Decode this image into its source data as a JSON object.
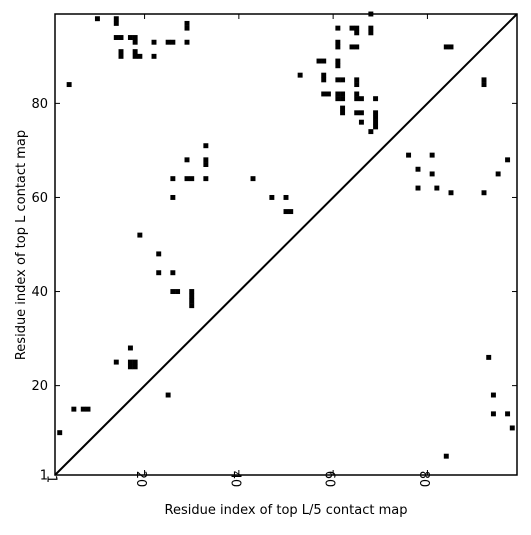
{
  "chart_data": {
    "type": "scatter",
    "title": "",
    "xlabel": "Residue index of top L/5 contact map",
    "ylabel": "Residue index of top L contact map",
    "xlim": [
      1,
      99
    ],
    "ylim": [
      1,
      99
    ],
    "x_ticks": [
      1,
      20,
      40,
      60,
      80
    ],
    "y_ticks": [
      1,
      20,
      40,
      60,
      80
    ],
    "grid": false,
    "diagonal": true,
    "marker": "square",
    "colors": {
      "marker": "#000000",
      "diagonal": "#000000",
      "axes": "#000000",
      "background": "#ffffff"
    },
    "upper_triangle_points": [
      [
        10,
        98
      ],
      [
        14,
        98
      ],
      [
        14,
        97
      ],
      [
        14,
        94
      ],
      [
        15,
        94
      ],
      [
        17,
        94
      ],
      [
        18,
        94
      ],
      [
        18,
        93
      ],
      [
        15,
        91
      ],
      [
        15,
        90
      ],
      [
        18,
        91
      ],
      [
        18,
        90
      ],
      [
        19,
        90
      ],
      [
        22,
        90
      ],
      [
        22,
        93
      ],
      [
        25,
        93
      ],
      [
        26,
        93
      ],
      [
        29,
        97
      ],
      [
        29,
        96
      ],
      [
        29,
        93
      ],
      [
        4,
        84
      ],
      [
        61,
        96
      ],
      [
        64,
        96
      ],
      [
        65,
        96
      ],
      [
        65,
        95
      ],
      [
        68,
        96
      ],
      [
        68,
        95
      ],
      [
        68,
        99
      ],
      [
        61,
        93
      ],
      [
        61,
        92
      ],
      [
        64,
        92
      ],
      [
        65,
        92
      ],
      [
        84,
        92
      ],
      [
        85,
        92
      ],
      [
        53,
        86
      ],
      [
        61,
        89
      ],
      [
        61,
        88
      ],
      [
        57,
        89
      ],
      [
        58,
        89
      ],
      [
        58,
        86
      ],
      [
        58,
        85
      ],
      [
        61,
        85
      ],
      [
        62,
        85
      ],
      [
        65,
        85
      ],
      [
        65,
        84
      ],
      [
        92,
        85
      ],
      [
        92,
        84
      ],
      [
        58,
        82
      ],
      [
        59,
        82
      ],
      [
        61,
        82
      ],
      [
        62,
        82
      ],
      [
        61,
        81
      ],
      [
        62,
        81
      ],
      [
        65,
        82
      ],
      [
        65,
        81
      ],
      [
        66,
        81
      ],
      [
        69,
        81
      ],
      [
        62,
        79
      ],
      [
        62,
        78
      ],
      [
        65,
        78
      ],
      [
        66,
        78
      ],
      [
        69,
        78
      ],
      [
        69,
        77
      ],
      [
        66,
        76
      ],
      [
        69,
        76
      ],
      [
        69,
        75
      ],
      [
        68,
        74
      ],
      [
        33,
        71
      ],
      [
        29,
        68
      ],
      [
        33,
        68
      ],
      [
        33,
        67
      ],
      [
        76,
        69
      ],
      [
        81,
        69
      ],
      [
        97,
        68
      ],
      [
        78,
        66
      ],
      [
        81,
        65
      ],
      [
        95,
        65
      ],
      [
        26,
        64
      ],
      [
        29,
        64
      ],
      [
        30,
        64
      ],
      [
        33,
        64
      ],
      [
        43,
        64
      ],
      [
        78,
        62
      ],
      [
        82,
        62
      ],
      [
        85,
        61
      ],
      [
        92,
        61
      ],
      [
        26,
        60
      ],
      [
        47,
        60
      ],
      [
        50,
        60
      ],
      [
        50,
        57
      ],
      [
        51,
        57
      ],
      [
        19,
        52
      ],
      [
        23,
        48
      ],
      [
        23,
        44
      ],
      [
        26,
        44
      ],
      [
        26,
        40
      ],
      [
        27,
        40
      ],
      [
        30,
        40
      ],
      [
        30,
        39
      ],
      [
        30,
        38
      ],
      [
        30,
        37
      ],
      [
        17,
        28
      ],
      [
        14,
        25
      ],
      [
        17,
        25
      ],
      [
        18,
        25
      ],
      [
        17,
        24
      ],
      [
        18,
        24
      ],
      [
        93,
        26
      ],
      [
        25,
        18
      ],
      [
        94,
        18
      ],
      [
        5,
        15
      ],
      [
        7,
        15
      ],
      [
        8,
        15
      ],
      [
        94,
        14
      ],
      [
        97,
        14
      ],
      [
        98,
        11
      ],
      [
        2,
        10
      ],
      [
        84,
        5
      ]
    ]
  }
}
